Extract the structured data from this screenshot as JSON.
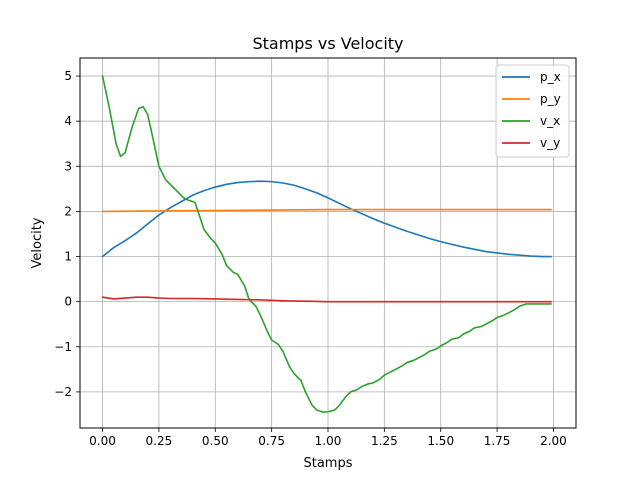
{
  "chart_data": {
    "type": "line",
    "title": "Stamps vs Velocity",
    "xlabel": "Stamps",
    "ylabel": "Velocity",
    "xlim": [
      -0.1,
      2.1
    ],
    "ylim": [
      -2.8,
      5.4
    ],
    "xticks": [
      0.0,
      0.25,
      0.5,
      0.75,
      1.0,
      1.25,
      1.5,
      1.75,
      2.0
    ],
    "xtick_labels": [
      "0.00",
      "0.25",
      "0.50",
      "0.75",
      "1.00",
      "1.25",
      "1.50",
      "1.75",
      "2.00"
    ],
    "yticks": [
      -2,
      -1,
      0,
      1,
      2,
      3,
      4,
      5
    ],
    "ytick_labels": [
      "−2",
      "−1",
      "0",
      "1",
      "2",
      "3",
      "4",
      "5"
    ],
    "grid": true,
    "legend_position": "top-right",
    "series": [
      {
        "name": "p_x",
        "color": "#1f77b4",
        "x": [
          0.0,
          0.05,
          0.1,
          0.15,
          0.2,
          0.25,
          0.3,
          0.35,
          0.4,
          0.45,
          0.5,
          0.55,
          0.6,
          0.65,
          0.7,
          0.75,
          0.8,
          0.85,
          0.9,
          0.95,
          1.0,
          1.05,
          1.1,
          1.15,
          1.2,
          1.25,
          1.3,
          1.35,
          1.4,
          1.45,
          1.5,
          1.55,
          1.6,
          1.65,
          1.7,
          1.75,
          1.8,
          1.85,
          1.9,
          1.95,
          1.99
        ],
        "y": [
          1.0,
          1.2,
          1.35,
          1.52,
          1.72,
          1.92,
          2.08,
          2.22,
          2.36,
          2.46,
          2.54,
          2.6,
          2.64,
          2.66,
          2.67,
          2.66,
          2.63,
          2.58,
          2.5,
          2.41,
          2.3,
          2.18,
          2.06,
          1.95,
          1.84,
          1.74,
          1.65,
          1.56,
          1.48,
          1.4,
          1.33,
          1.27,
          1.21,
          1.16,
          1.11,
          1.08,
          1.05,
          1.03,
          1.01,
          1.0,
          1.0
        ]
      },
      {
        "name": "p_y",
        "color": "#ff7f0e",
        "x": [
          0.0,
          0.25,
          0.5,
          0.75,
          1.0,
          1.25,
          1.5,
          1.75,
          1.99
        ],
        "y": [
          2.0,
          2.01,
          2.02,
          2.03,
          2.04,
          2.04,
          2.04,
          2.04,
          2.04
        ]
      },
      {
        "name": "v_x",
        "color": "#2ca02c",
        "x": [
          0.0,
          0.03,
          0.06,
          0.08,
          0.1,
          0.13,
          0.16,
          0.18,
          0.2,
          0.22,
          0.25,
          0.28,
          0.3,
          0.33,
          0.36,
          0.38,
          0.41,
          0.43,
          0.45,
          0.48,
          0.5,
          0.53,
          0.55,
          0.58,
          0.6,
          0.63,
          0.65,
          0.68,
          0.7,
          0.73,
          0.75,
          0.78,
          0.8,
          0.83,
          0.85,
          0.88,
          0.9,
          0.93,
          0.95,
          0.98,
          1.0,
          1.03,
          1.05,
          1.08,
          1.1,
          1.13,
          1.15,
          1.18,
          1.2,
          1.23,
          1.25,
          1.28,
          1.3,
          1.33,
          1.35,
          1.38,
          1.4,
          1.43,
          1.45,
          1.48,
          1.5,
          1.53,
          1.55,
          1.58,
          1.6,
          1.63,
          1.65,
          1.68,
          1.7,
          1.73,
          1.75,
          1.78,
          1.8,
          1.83,
          1.85,
          1.88,
          1.9,
          1.93,
          1.95,
          1.98,
          1.99
        ],
        "y": [
          5.0,
          4.3,
          3.5,
          3.22,
          3.3,
          3.85,
          4.28,
          4.32,
          4.15,
          3.7,
          3.0,
          2.7,
          2.6,
          2.45,
          2.3,
          2.25,
          2.2,
          1.9,
          1.6,
          1.4,
          1.3,
          1.05,
          0.8,
          0.65,
          0.6,
          0.35,
          0.05,
          -0.1,
          -0.3,
          -0.65,
          -0.85,
          -0.95,
          -1.1,
          -1.45,
          -1.6,
          -1.75,
          -2.0,
          -2.3,
          -2.4,
          -2.45,
          -2.44,
          -2.4,
          -2.3,
          -2.1,
          -2.0,
          -1.95,
          -1.88,
          -1.82,
          -1.8,
          -1.72,
          -1.63,
          -1.55,
          -1.5,
          -1.42,
          -1.35,
          -1.3,
          -1.25,
          -1.17,
          -1.1,
          -1.05,
          -0.98,
          -0.9,
          -0.83,
          -0.8,
          -0.72,
          -0.65,
          -0.58,
          -0.55,
          -0.5,
          -0.42,
          -0.35,
          -0.3,
          -0.25,
          -0.17,
          -0.1,
          -0.05,
          -0.05,
          -0.05,
          -0.05,
          -0.05,
          -0.05
        ]
      },
      {
        "name": "v_y",
        "color": "#d62728",
        "x": [
          0.0,
          0.05,
          0.1,
          0.15,
          0.2,
          0.25,
          0.3,
          0.4,
          0.5,
          0.6,
          0.7,
          0.8,
          0.9,
          1.0,
          1.1,
          1.2,
          1.4,
          1.6,
          1.8,
          1.99
        ],
        "y": [
          0.1,
          0.06,
          0.08,
          0.1,
          0.1,
          0.08,
          0.07,
          0.07,
          0.06,
          0.05,
          0.04,
          0.02,
          0.01,
          0.0,
          0.0,
          0.0,
          0.0,
          0.0,
          0.0,
          0.0
        ]
      }
    ]
  }
}
